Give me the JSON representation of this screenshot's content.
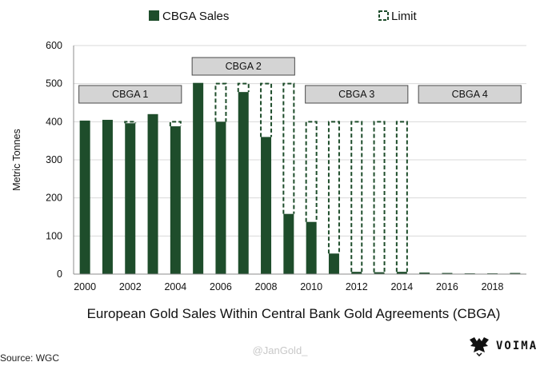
{
  "chart_data": {
    "type": "bar",
    "title": "",
    "subtitle": "European Gold Sales Within Central Bank Gold Agreements (CBGA)",
    "ylabel": "Metric Tonnes",
    "xlabel": "",
    "ylim": [
      0,
      600
    ],
    "yticks": [
      0,
      100,
      200,
      300,
      400,
      500,
      600
    ],
    "x_tick_labels": [
      "2000",
      "2002",
      "2004",
      "2006",
      "2008",
      "2010",
      "2012",
      "2014",
      "2016",
      "2018"
    ],
    "grid": true,
    "legend_position": "top",
    "categories": [
      "2000",
      "2001",
      "2002",
      "2003",
      "2004",
      "2005",
      "2006",
      "2007",
      "2008",
      "2009",
      "2010",
      "2011",
      "2012",
      "2013",
      "2014",
      "2015",
      "2016",
      "2017",
      "2018",
      "2019"
    ],
    "series": [
      {
        "name": "CBGA Sales",
        "style": "solid",
        "color": "#1e4d2b",
        "values": [
          403,
          405,
          396,
          420,
          388,
          502,
          400,
          478,
          360,
          158,
          137,
          54,
          6,
          5,
          6,
          4,
          3,
          2,
          2,
          3
        ]
      },
      {
        "name": "Limit",
        "style": "dashed-outline",
        "color": "#1e4d2b",
        "values": [
          400,
          400,
          400,
          400,
          400,
          500,
          500,
          500,
          500,
          500,
          400,
          400,
          400,
          400,
          400,
          null,
          null,
          null,
          null,
          null
        ]
      }
    ],
    "agreement_bands": [
      {
        "label": "CBGA 1",
        "start": "2000",
        "end": "2004"
      },
      {
        "label": "CBGA 2",
        "start": "2005",
        "end": "2009"
      },
      {
        "label": "CBGA 3",
        "start": "2010",
        "end": "2014"
      },
      {
        "label": "CBGA 4",
        "start": "2015",
        "end": "2019"
      }
    ]
  },
  "footer": {
    "source": "Source: WGC",
    "handle": "@JanGold_",
    "brand": "VOIMA"
  }
}
